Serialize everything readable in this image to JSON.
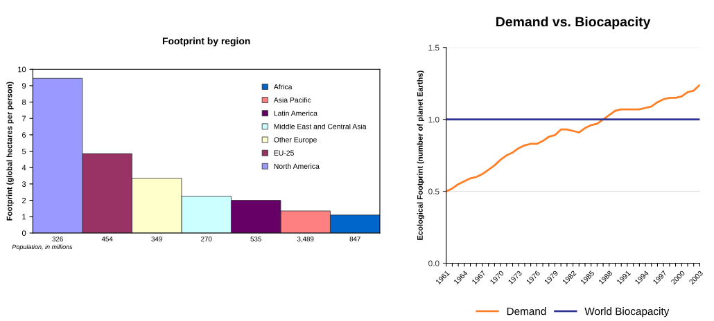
{
  "chart_data": [
    {
      "type": "bar",
      "title": "Footprint by region",
      "ylabel": "Footprint (global hectares per person)",
      "categories": [
        "326",
        "454",
        "349",
        "270",
        "535",
        "3,489",
        "847"
      ],
      "series": [
        {
          "name": "Africa",
          "color": "#0066cc",
          "values": [
            null,
            null,
            null,
            null,
            null,
            null,
            1.1
          ]
        },
        {
          "name": "Asia Pacific",
          "color": "#ff8080",
          "values": [
            null,
            null,
            null,
            null,
            null,
            1.35,
            null
          ]
        },
        {
          "name": "Latin America",
          "color": "#660066",
          "values": [
            null,
            null,
            null,
            null,
            2.0,
            null,
            null
          ]
        },
        {
          "name": "Middle East and Central Asia",
          "color": "#ccffff",
          "values": [
            null,
            null,
            null,
            2.25,
            null,
            null,
            null
          ]
        },
        {
          "name": "Other Europe",
          "color": "#ffffcc",
          "values": [
            null,
            null,
            3.35,
            null,
            null,
            null,
            null
          ]
        },
        {
          "name": "EU-25",
          "color": "#993366",
          "values": [
            null,
            4.85,
            null,
            null,
            null,
            null,
            null
          ]
        },
        {
          "name": "North America",
          "color": "#9999ff",
          "values": [
            9.45,
            null,
            null,
            null,
            null,
            null,
            null
          ]
        }
      ],
      "ylim": [
        0,
        10
      ],
      "yticks": [
        0,
        1,
        2,
        3,
        4,
        5,
        6,
        7,
        8,
        9,
        10
      ],
      "legend": "right",
      "grid": false,
      "annotations": [
        "Population, in millions"
      ]
    },
    {
      "type": "line",
      "title": "Demand vs. Biocapacity",
      "ylabel": "Ecological Footprint (number of planet Earths)",
      "x": [
        1961,
        1962,
        1963,
        1964,
        1965,
        1966,
        1967,
        1968,
        1969,
        1970,
        1971,
        1972,
        1973,
        1974,
        1975,
        1976,
        1977,
        1978,
        1979,
        1980,
        1981,
        1982,
        1983,
        1984,
        1985,
        1986,
        1987,
        1988,
        1989,
        1990,
        1991,
        1992,
        1993,
        1994,
        1995,
        1996,
        1997,
        1998,
        1999,
        2000,
        2001,
        2002,
        2003
      ],
      "series": [
        {
          "name": "Demand",
          "color": "#ff7f27",
          "values": [
            0.5,
            0.52,
            0.55,
            0.57,
            0.59,
            0.6,
            0.62,
            0.65,
            0.68,
            0.72,
            0.75,
            0.77,
            0.8,
            0.82,
            0.83,
            0.83,
            0.85,
            0.88,
            0.89,
            0.93,
            0.93,
            0.92,
            0.91,
            0.94,
            0.96,
            0.97,
            1.0,
            1.03,
            1.06,
            1.07,
            1.07,
            1.07,
            1.07,
            1.08,
            1.09,
            1.12,
            1.14,
            1.15,
            1.15,
            1.16,
            1.19,
            1.2,
            1.24
          ]
        },
        {
          "name": "World Biocapacity",
          "color": "#2e3192",
          "values": [
            1.0,
            1.0,
            1.0,
            1.0,
            1.0,
            1.0,
            1.0,
            1.0,
            1.0,
            1.0,
            1.0,
            1.0,
            1.0,
            1.0,
            1.0,
            1.0,
            1.0,
            1.0,
            1.0,
            1.0,
            1.0,
            1.0,
            1.0,
            1.0,
            1.0,
            1.0,
            1.0,
            1.0,
            1.0,
            1.0,
            1.0,
            1.0,
            1.0,
            1.0,
            1.0,
            1.0,
            1.0,
            1.0,
            1.0,
            1.0,
            1.0,
            1.0,
            1.0
          ]
        }
      ],
      "xlim": [
        1961,
        2003
      ],
      "xticks": [
        1961,
        {
          "value": 1962,
          "label": null
        },
        {
          "value": 1963,
          "label": null
        },
        1964,
        {
          "value": 1965,
          "label": null
        },
        {
          "value": 1966,
          "label": null
        },
        1967,
        {
          "value": 1968,
          "label": null
        },
        {
          "value": 1969,
          "label": null
        },
        1970,
        {
          "value": 1971,
          "label": null
        },
        {
          "value": 1972,
          "label": null
        },
        1973,
        {
          "value": 1974,
          "label": null
        },
        {
          "value": 1975,
          "label": null
        },
        1976,
        {
          "value": 1977,
          "label": null
        },
        {
          "value": 1978,
          "label": null
        },
        1979,
        {
          "value": 1980,
          "label": null
        },
        {
          "value": 1981,
          "label": null
        },
        1982,
        {
          "value": 1983,
          "label": null
        },
        {
          "value": 1984,
          "label": null
        },
        1985,
        {
          "value": 1986,
          "label": null
        },
        {
          "value": 1987,
          "label": null
        },
        1988,
        {
          "value": 1989,
          "label": null
        },
        {
          "value": 1990,
          "label": null
        },
        1991,
        {
          "value": 1992,
          "label": null
        },
        {
          "value": 1993,
          "label": null
        },
        1994,
        {
          "value": 1995,
          "label": null
        },
        {
          "value": 1996,
          "label": null
        },
        1997,
        {
          "value": 1998,
          "label": null
        },
        {
          "value": 1999,
          "label": null
        },
        2000,
        {
          "value": 2001,
          "label": null
        },
        {
          "value": 2002,
          "label": null
        },
        2003
      ],
      "ylim": [
        0.0,
        1.5
      ],
      "yticks": [
        {
          "value": 0.0,
          "label": "0.0"
        },
        {
          "value": 0.5,
          "label": "0.5"
        },
        {
          "value": 1.0,
          "label": "1.0"
        },
        {
          "value": 1.5,
          "label": "1.5"
        }
      ],
      "legend": "bottom",
      "grid": "y",
      "marker": "none",
      "line_style": "solid"
    }
  ]
}
